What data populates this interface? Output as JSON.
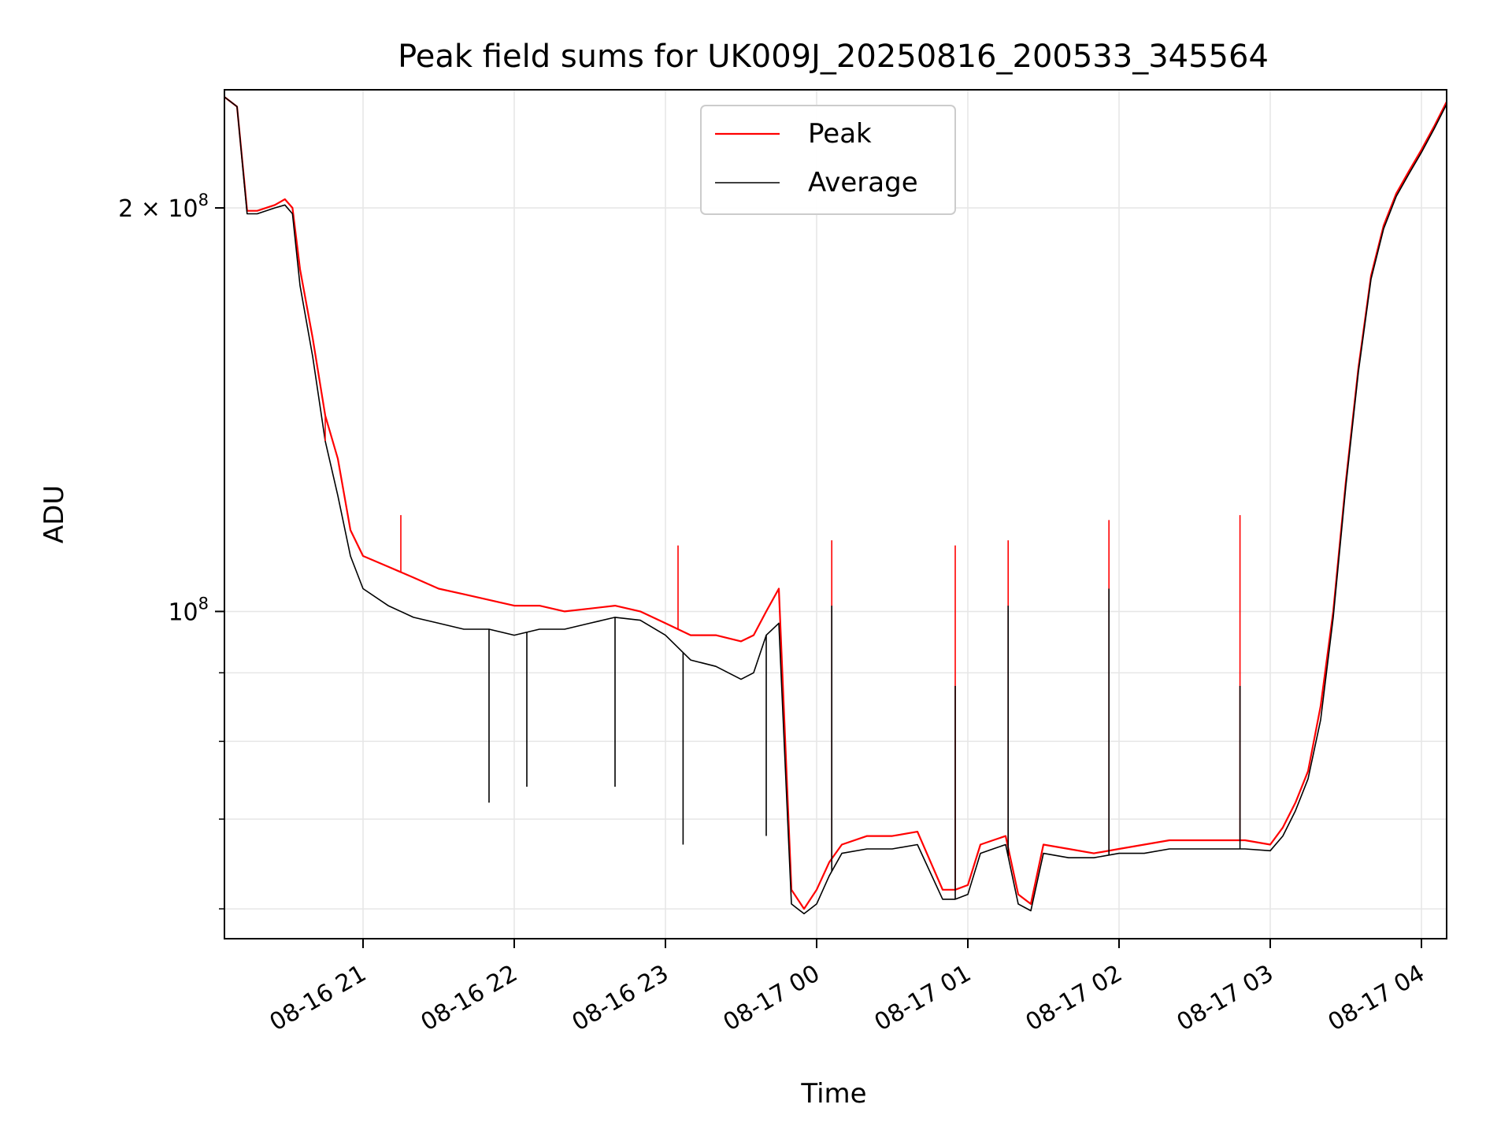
{
  "chart_data": {
    "type": "line",
    "title": "Peak field sums for UK009J_20250816_200533_345564",
    "xlabel": "Time",
    "ylabel": "ADU",
    "x_scale": "time",
    "y_scale": "log",
    "xlim": [
      "2025-08-16 20:05",
      "2025-08-17 04:10"
    ],
    "ylim": [
      57000000,
      245000000
    ],
    "x_ticks": [
      {
        "value": "2025-08-16 21:00",
        "label": "08-16 21"
      },
      {
        "value": "2025-08-16 22:00",
        "label": "08-16 22"
      },
      {
        "value": "2025-08-16 23:00",
        "label": "08-16 23"
      },
      {
        "value": "2025-08-17 00:00",
        "label": "08-17 00"
      },
      {
        "value": "2025-08-17 01:00",
        "label": "08-17 01"
      },
      {
        "value": "2025-08-17 02:00",
        "label": "08-17 02"
      },
      {
        "value": "2025-08-17 03:00",
        "label": "08-17 03"
      },
      {
        "value": "2025-08-17 04:00",
        "label": "08-17 04"
      }
    ],
    "y_major_ticks": [
      {
        "value": 100000000,
        "base": "10",
        "exp": "8",
        "prefix": ""
      },
      {
        "value": 200000000,
        "base": "10",
        "exp": "8",
        "prefix": "2 × "
      }
    ],
    "y_minor_ticks": [
      60000000,
      70000000,
      80000000,
      90000000
    ],
    "grid": true,
    "legend_position": "top-center",
    "series": [
      {
        "name": "Peak",
        "color": "#ff0000",
        "x": [
          "2025-08-16 20:05",
          "2025-08-16 20:10",
          "2025-08-16 20:14",
          "2025-08-16 20:18",
          "2025-08-16 20:25",
          "2025-08-16 20:29",
          "2025-08-16 20:32",
          "2025-08-16 20:35",
          "2025-08-16 20:40",
          "2025-08-16 20:45",
          "2025-08-16 20:50",
          "2025-08-16 20:55",
          "2025-08-16 21:00",
          "2025-08-16 21:10",
          "2025-08-16 21:20",
          "2025-08-16 21:30",
          "2025-08-16 21:40",
          "2025-08-16 21:50",
          "2025-08-16 22:00",
          "2025-08-16 22:10",
          "2025-08-16 22:20",
          "2025-08-16 22:30",
          "2025-08-16 22:40",
          "2025-08-16 22:50",
          "2025-08-16 23:00",
          "2025-08-16 23:10",
          "2025-08-16 23:20",
          "2025-08-16 23:30",
          "2025-08-16 23:35",
          "2025-08-16 23:40",
          "2025-08-16 23:45",
          "2025-08-16 23:50",
          "2025-08-16 23:55",
          "2025-08-17 00:00",
          "2025-08-17 00:05",
          "2025-08-17 00:10",
          "2025-08-17 00:20",
          "2025-08-17 00:30",
          "2025-08-17 00:40",
          "2025-08-17 00:50",
          "2025-08-17 00:55",
          "2025-08-17 01:00",
          "2025-08-17 01:05",
          "2025-08-17 01:10",
          "2025-08-17 01:15",
          "2025-08-17 01:20",
          "2025-08-17 01:25",
          "2025-08-17 01:30",
          "2025-08-17 01:40",
          "2025-08-17 01:50",
          "2025-08-17 02:00",
          "2025-08-17 02:10",
          "2025-08-17 02:20",
          "2025-08-17 02:30",
          "2025-08-17 02:40",
          "2025-08-17 02:50",
          "2025-08-17 03:00",
          "2025-08-17 03:05",
          "2025-08-17 03:10",
          "2025-08-17 03:15",
          "2025-08-17 03:20",
          "2025-08-17 03:25",
          "2025-08-17 03:30",
          "2025-08-17 03:35",
          "2025-08-17 03:40",
          "2025-08-17 03:45",
          "2025-08-17 03:50",
          "2025-08-17 03:55",
          "2025-08-17 04:00",
          "2025-08-17 04:05",
          "2025-08-17 04:10"
        ],
        "y": [
          242000000,
          238000000,
          199000000,
          199000000,
          201000000,
          203000000,
          200000000,
          180000000,
          160000000,
          140000000,
          130000000,
          115000000,
          110000000,
          108000000,
          106000000,
          104000000,
          103000000,
          102000000,
          101000000,
          101000000,
          100000000,
          100500000,
          101000000,
          100000000,
          98000000,
          96000000,
          96000000,
          95000000,
          96000000,
          100000000,
          104000000,
          62000000,
          60000000,
          62000000,
          65000000,
          67000000,
          68000000,
          68000000,
          68500000,
          62000000,
          62000000,
          62500000,
          67000000,
          67500000,
          68000000,
          61500000,
          60500000,
          67000000,
          66500000,
          66000000,
          66500000,
          67000000,
          67500000,
          67500000,
          67500000,
          67500000,
          67000000,
          69000000,
          72000000,
          76000000,
          85000000,
          100000000,
          125000000,
          152000000,
          178000000,
          194000000,
          205000000,
          213000000,
          221000000,
          230000000,
          240000000
        ]
      },
      {
        "name": "Average",
        "color": "#000000",
        "x": [
          "2025-08-16 20:05",
          "2025-08-16 20:10",
          "2025-08-16 20:14",
          "2025-08-16 20:18",
          "2025-08-16 20:25",
          "2025-08-16 20:29",
          "2025-08-16 20:32",
          "2025-08-16 20:35",
          "2025-08-16 20:40",
          "2025-08-16 20:45",
          "2025-08-16 20:50",
          "2025-08-16 20:55",
          "2025-08-16 21:00",
          "2025-08-16 21:10",
          "2025-08-16 21:20",
          "2025-08-16 21:30",
          "2025-08-16 21:40",
          "2025-08-16 21:50",
          "2025-08-16 22:00",
          "2025-08-16 22:10",
          "2025-08-16 22:20",
          "2025-08-16 22:30",
          "2025-08-16 22:40",
          "2025-08-16 22:50",
          "2025-08-16 23:00",
          "2025-08-16 23:10",
          "2025-08-16 23:20",
          "2025-08-16 23:30",
          "2025-08-16 23:35",
          "2025-08-16 23:40",
          "2025-08-16 23:45",
          "2025-08-16 23:50",
          "2025-08-16 23:55",
          "2025-08-17 00:00",
          "2025-08-17 00:05",
          "2025-08-17 00:10",
          "2025-08-17 00:20",
          "2025-08-17 00:30",
          "2025-08-17 00:40",
          "2025-08-17 00:50",
          "2025-08-17 00:55",
          "2025-08-17 01:00",
          "2025-08-17 01:05",
          "2025-08-17 01:10",
          "2025-08-17 01:15",
          "2025-08-17 01:20",
          "2025-08-17 01:25",
          "2025-08-17 01:30",
          "2025-08-17 01:40",
          "2025-08-17 01:50",
          "2025-08-17 02:00",
          "2025-08-17 02:10",
          "2025-08-17 02:20",
          "2025-08-17 02:30",
          "2025-08-17 02:40",
          "2025-08-17 02:50",
          "2025-08-17 03:00",
          "2025-08-17 03:05",
          "2025-08-17 03:10",
          "2025-08-17 03:15",
          "2025-08-17 03:20",
          "2025-08-17 03:25",
          "2025-08-17 03:30",
          "2025-08-17 03:35",
          "2025-08-17 03:40",
          "2025-08-17 03:45",
          "2025-08-17 03:50",
          "2025-08-17 03:55",
          "2025-08-17 04:00",
          "2025-08-17 04:05",
          "2025-08-17 04:10"
        ],
        "y": [
          242000000,
          238000000,
          198000000,
          198000000,
          200000000,
          201000000,
          198000000,
          175000000,
          155000000,
          134000000,
          122000000,
          110000000,
          104000000,
          101000000,
          99000000,
          98000000,
          97000000,
          97000000,
          96000000,
          97000000,
          97000000,
          98000000,
          99000000,
          98500000,
          96000000,
          92000000,
          91000000,
          89000000,
          90000000,
          96000000,
          98000000,
          60500000,
          59500000,
          60500000,
          63500000,
          66000000,
          66500000,
          66500000,
          67000000,
          61000000,
          61000000,
          61500000,
          66000000,
          66500000,
          67000000,
          60500000,
          59800000,
          66000000,
          65500000,
          65500000,
          66000000,
          66000000,
          66500000,
          66500000,
          66500000,
          66500000,
          66300000,
          68000000,
          71000000,
          75000000,
          83000000,
          99000000,
          124000000,
          151000000,
          177000000,
          193000000,
          204000000,
          212000000,
          220000000,
          229000000,
          239000000
        ]
      }
    ],
    "spikes": [
      {
        "series": "Peak",
        "x": "2025-08-16 23:05",
        "y": 112000000
      },
      {
        "series": "Peak",
        "x": "2025-08-17 00:06",
        "y": 113000000
      },
      {
        "series": "Average",
        "x": "2025-08-17 00:06",
        "y": 101000000
      },
      {
        "series": "Peak",
        "x": "2025-08-16 21:15",
        "y": 118000000
      },
      {
        "series": "Peak",
        "x": "2025-08-16 20:45",
        "y": 134000000
      },
      {
        "series": "Peak",
        "x": "2025-08-17 00:55",
        "y": 112000000
      },
      {
        "series": "Average",
        "x": "2025-08-17 00:55",
        "y": 88000000
      },
      {
        "series": "Peak",
        "x": "2025-08-17 01:16",
        "y": 113000000
      },
      {
        "series": "Average",
        "x": "2025-08-17 01:16",
        "y": 101000000
      },
      {
        "series": "Peak",
        "x": "2025-08-17 01:56",
        "y": 117000000
      },
      {
        "series": "Average",
        "x": "2025-08-17 01:56",
        "y": 104000000
      },
      {
        "series": "Peak",
        "x": "2025-08-17 02:48",
        "y": 118000000
      },
      {
        "series": "Average",
        "x": "2025-08-17 02:48",
        "y": 88000000
      },
      {
        "series": "Average",
        "x": "2025-08-16 21:50",
        "y": 72000000
      },
      {
        "series": "Average",
        "x": "2025-08-16 22:05",
        "y": 74000000
      },
      {
        "series": "Average",
        "x": "2025-08-16 22:40",
        "y": 74000000
      },
      {
        "series": "Average",
        "x": "2025-08-16 23:07",
        "y": 67000000
      },
      {
        "series": "Average",
        "x": "2025-08-16 23:40",
        "y": 68000000
      }
    ]
  }
}
